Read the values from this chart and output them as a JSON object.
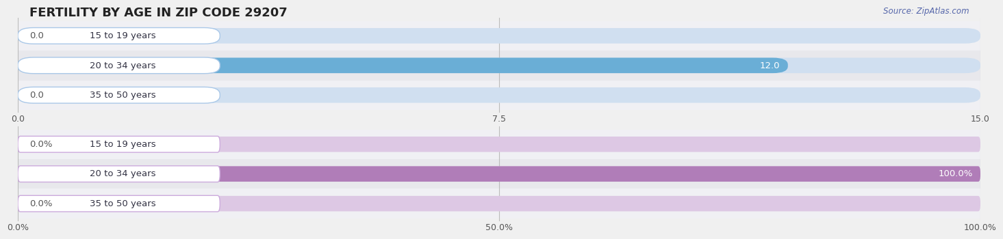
{
  "title": "FERTILITY BY AGE IN ZIP CODE 29207",
  "source": "Source: ZipAtlas.com",
  "top_chart": {
    "categories": [
      "15 to 19 years",
      "20 to 34 years",
      "35 to 50 years"
    ],
    "values": [
      0.0,
      12.0,
      0.0
    ],
    "xlim": [
      0,
      15.0
    ],
    "xticks": [
      0.0,
      7.5,
      15.0
    ],
    "xtick_labels": [
      "0.0",
      "7.5",
      "15.0"
    ],
    "bar_color": "#6aaed6",
    "bar_bg_color": "#d0dff0",
    "pill_bg": "#ffffff",
    "pill_border": "#aac8e8"
  },
  "bottom_chart": {
    "categories": [
      "15 to 19 years",
      "20 to 34 years",
      "35 to 50 years"
    ],
    "values": [
      0.0,
      100.0,
      0.0
    ],
    "xlim": [
      0,
      100.0
    ],
    "xticks": [
      0.0,
      50.0,
      100.0
    ],
    "xtick_labels": [
      "0.0%",
      "50.0%",
      "100.0%"
    ],
    "bar_color": "#b07db8",
    "bar_bg_color": "#ddc8e4",
    "pill_bg": "#ffffff",
    "pill_border": "#ccaadd"
  },
  "label_font_size": 9.5,
  "tick_font_size": 9,
  "title_font_size": 13,
  "source_font_size": 8.5,
  "category_label_color": "#333344",
  "background_color": "#f0f0f0",
  "row_bg_color_odd": "#e8e8ec",
  "row_bg_color_even": "#f0f0f4",
  "bar_height": 0.52,
  "sep_color": "#dddddd"
}
